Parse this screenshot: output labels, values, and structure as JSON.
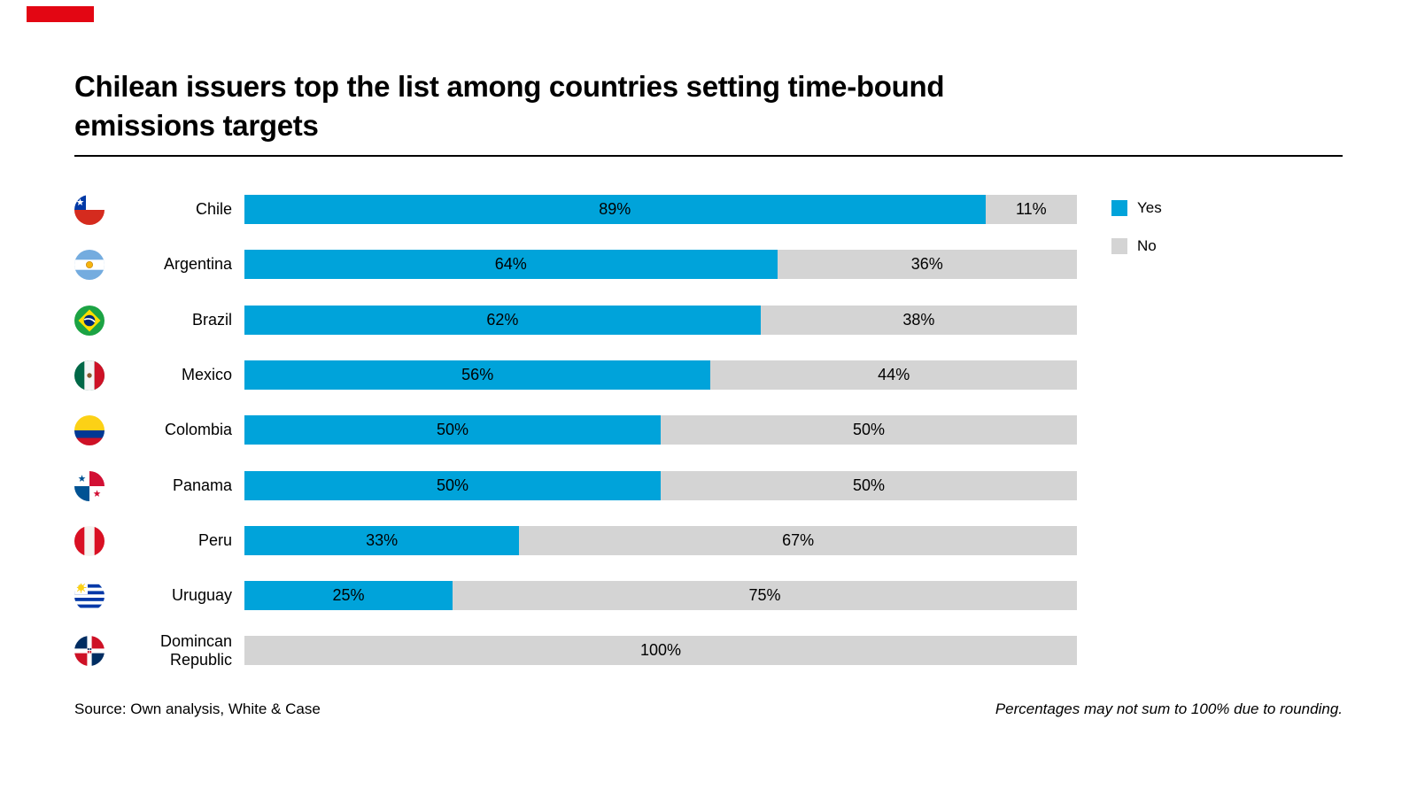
{
  "accent_color": "#e30613",
  "header": {
    "title_line1": "Chilean issuers top the list among countries setting time-bound",
    "title_line2": "emissions targets"
  },
  "chart_data": {
    "type": "bar",
    "stacked": true,
    "horizontal": true,
    "title": "Chilean issuers top the list among countries setting time-bound emissions targets",
    "categories": [
      "Chile",
      "Argentina",
      "Brazil",
      "Mexico",
      "Colombia",
      "Panama",
      "Peru",
      "Uruguay",
      "Domincan Republic"
    ],
    "flag_icons": [
      "chile",
      "argentina",
      "brazil",
      "mexico",
      "colombia",
      "panama",
      "peru",
      "uruguay",
      "dominican-republic"
    ],
    "series": [
      {
        "name": "Yes",
        "color": "#00a3da",
        "values": [
          89,
          64,
          62,
          56,
          50,
          50,
          33,
          25,
          0
        ]
      },
      {
        "name": "No",
        "color": "#d4d4d4",
        "values": [
          11,
          36,
          38,
          44,
          50,
          50,
          67,
          75,
          100
        ]
      }
    ],
    "segment_labels": [
      [
        "89%",
        "11%"
      ],
      [
        "64%",
        "36%"
      ],
      [
        "62%",
        "38%"
      ],
      [
        "56%",
        "44%"
      ],
      [
        "50%",
        "50%"
      ],
      [
        "50%",
        "50%"
      ],
      [
        "33%",
        "67%"
      ],
      [
        "25%",
        "75%"
      ],
      [
        "",
        "100%"
      ]
    ],
    "value_unit": "%",
    "xlim": [
      0,
      100
    ],
    "legend_position": "right",
    "grid": false
  },
  "footer": {
    "source": "Source: Own analysis, White & Case",
    "note": "Percentages may not sum to 100% due to rounding."
  }
}
